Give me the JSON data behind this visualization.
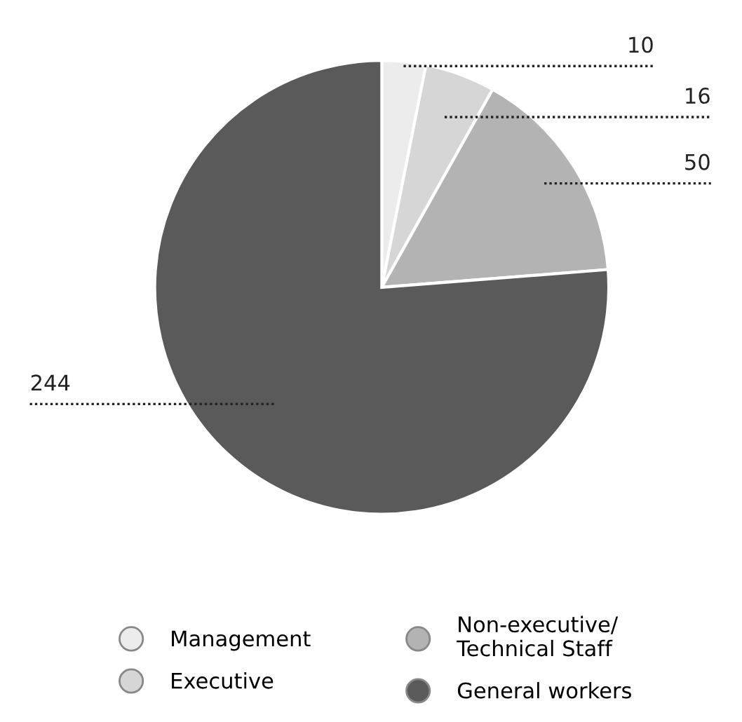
{
  "chart_data": {
    "type": "pie",
    "categories": [
      "Management",
      "Executive",
      "Non-executive/\nTechnical Staff",
      "General workers"
    ],
    "values": [
      10,
      16,
      50,
      244
    ],
    "colors": [
      "#ececec",
      "#d6d6d6",
      "#b3b3b3",
      "#5a5a5a"
    ],
    "data_labels": true,
    "legend": "bottom"
  }
}
